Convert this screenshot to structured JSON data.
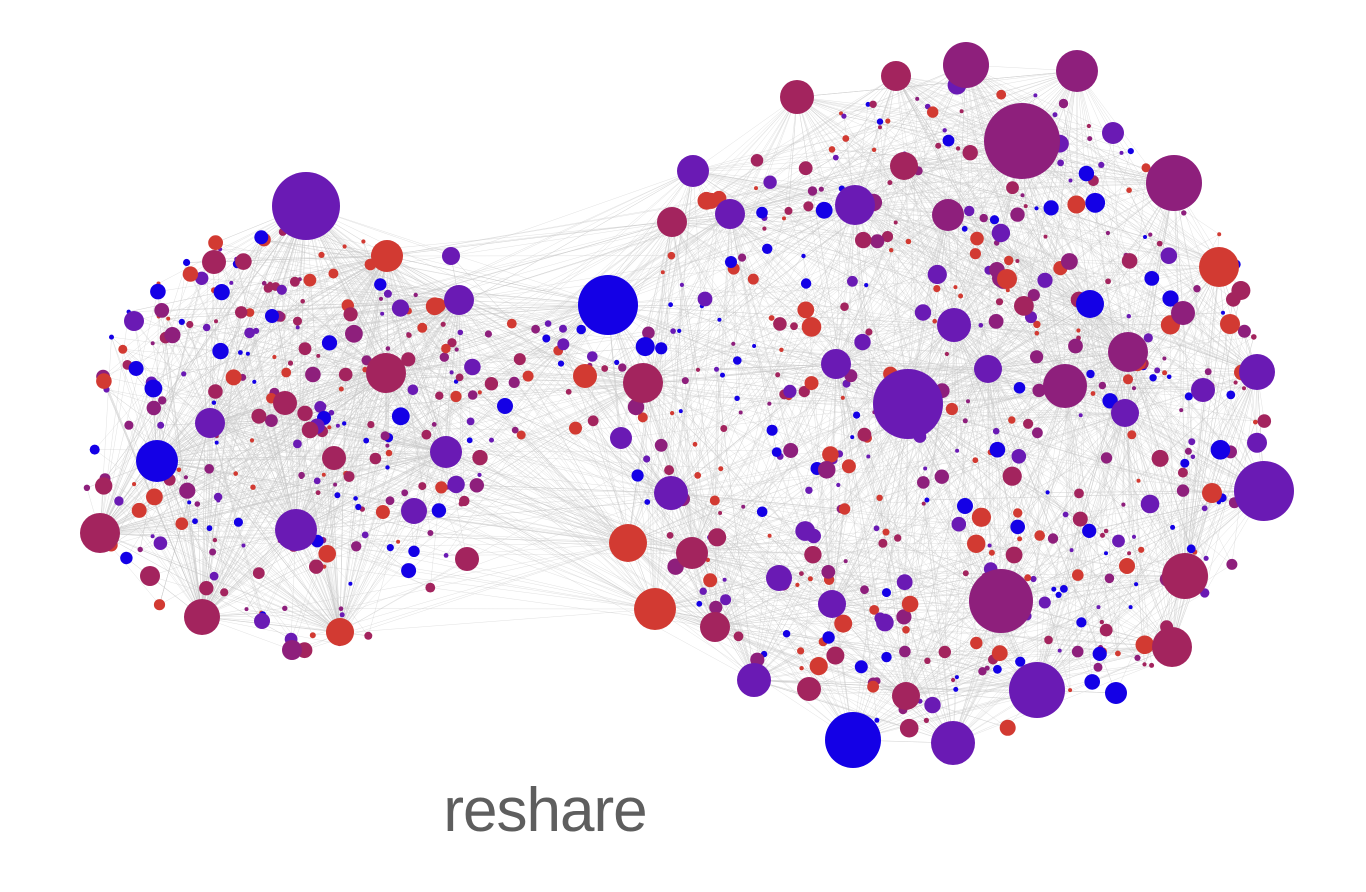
{
  "caption": "reshare",
  "graph": {
    "type": "network",
    "node_color_scale": [
      "#1400e6",
      "#6a1ab4",
      "#8e1f7c",
      "#a3245e",
      "#d23a32"
    ],
    "edge_color": "#c9c9c9",
    "clusters": 2
  }
}
